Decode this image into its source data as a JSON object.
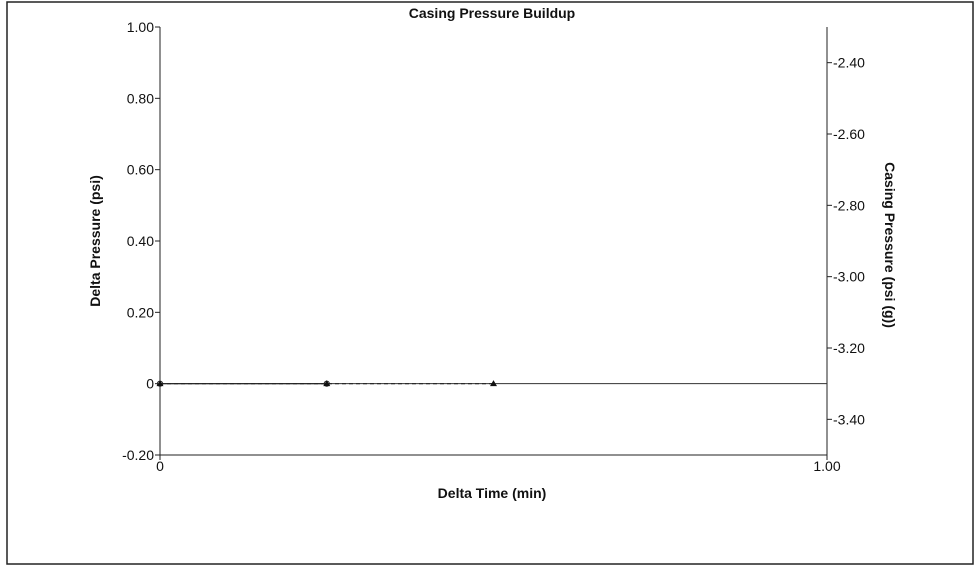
{
  "chart_data": {
    "type": "line",
    "title": "Casing Pressure Buildup",
    "xlabel": "Delta Time (min)",
    "ylabel": "Delta Pressure (psi)",
    "y2label": "Casing Pressure (psi (g))",
    "xlim": [
      0,
      1.0
    ],
    "ylim": [
      -0.2,
      1.0
    ],
    "y2lim": [
      -3.5,
      -2.3
    ],
    "x_ticks": [
      "0",
      "1.00"
    ],
    "y_ticks": [
      "-0.20",
      "0",
      "0.20",
      "0.40",
      "0.60",
      "0.80",
      "1.00"
    ],
    "y2_ticks": [
      "-2.40",
      "-2.60",
      "-2.80",
      "-3.00",
      "-3.20",
      "-3.40"
    ],
    "grid": false,
    "series": [
      {
        "marker": "open-circle",
        "x": [
          0,
          0.25
        ],
        "y": [
          0,
          0
        ],
        "line": "solid"
      },
      {
        "marker": "filled-triangle",
        "x": [
          0,
          0.25,
          0.5
        ],
        "y": [
          0,
          0,
          0
        ],
        "line": "dashed"
      }
    ]
  }
}
